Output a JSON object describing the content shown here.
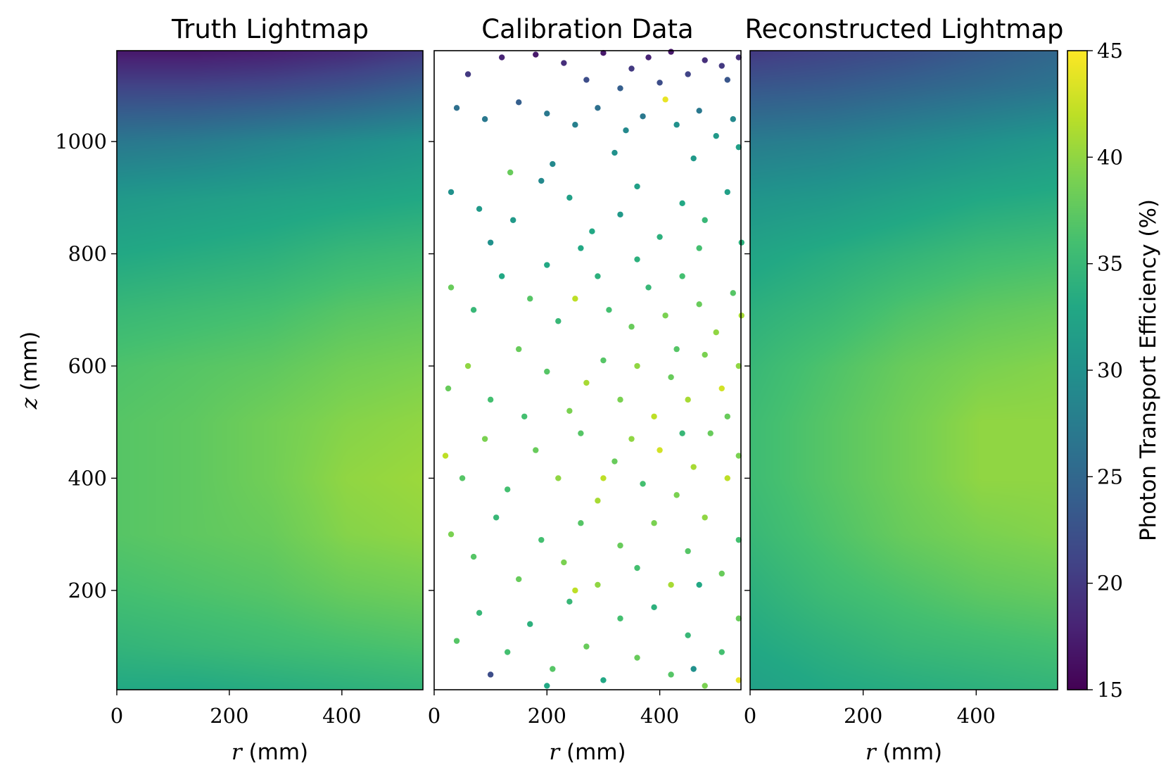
{
  "chart_data": [
    {
      "type": "heatmap",
      "title": "Truth Lightmap",
      "xlabel_var": "r",
      "xlabel_unit": "(mm)",
      "ylabel_var": "z",
      "ylabel_unit": "(mm)",
      "xlim": [
        0,
        544
      ],
      "ylim": [
        23,
        1162
      ],
      "xticks": [
        0,
        200,
        400
      ],
      "yticks": [
        200,
        400,
        600,
        800,
        1000
      ],
      "clim": [
        15,
        45
      ],
      "grid_r": [
        0,
        136,
        272,
        408,
        544
      ],
      "grid_z": [
        1162,
        1100,
        1000,
        900,
        800,
        700,
        600,
        500,
        400,
        300,
        200,
        100,
        23
      ],
      "values": [
        [
          17,
          17,
          17.5,
          18.5,
          20
        ],
        [
          21,
          21,
          21.5,
          22.5,
          24
        ],
        [
          27,
          27.5,
          28.5,
          29.5,
          30.5
        ],
        [
          31,
          31.5,
          32,
          32.5,
          33
        ],
        [
          33,
          33.5,
          34,
          35,
          35.5
        ],
        [
          35,
          35.5,
          36,
          37,
          37.5
        ],
        [
          36.5,
          37,
          37.5,
          38.5,
          39
        ],
        [
          37,
          37.5,
          38.5,
          39.5,
          40
        ],
        [
          37,
          37.5,
          38.5,
          40,
          40.5
        ],
        [
          37,
          37.5,
          38,
          39.5,
          40
        ],
        [
          36,
          36.5,
          37,
          38,
          38.5
        ],
        [
          34.5,
          35,
          35.5,
          36,
          36.5
        ],
        [
          33,
          33,
          33.5,
          34,
          34.5
        ]
      ]
    },
    {
      "type": "scatter",
      "title": "Calibration Data",
      "xlabel_var": "r",
      "xlabel_unit": "(mm)",
      "xlim": [
        0,
        544
      ],
      "ylim": [
        23,
        1162
      ],
      "xticks": [
        0,
        200,
        400
      ],
      "yticks": [
        200,
        400,
        600,
        800,
        1000
      ],
      "clim": [
        15,
        45
      ],
      "point_fields": [
        "r",
        "z",
        "efficiency"
      ],
      "points": [
        [
          120,
          1150,
          18
        ],
        [
          180,
          1155,
          17
        ],
        [
          230,
          1140,
          19
        ],
        [
          300,
          1158,
          17
        ],
        [
          350,
          1130,
          20
        ],
        [
          380,
          1150,
          18
        ],
        [
          420,
          1160,
          17
        ],
        [
          450,
          1120,
          21
        ],
        [
          480,
          1145,
          19
        ],
        [
          510,
          1135,
          20
        ],
        [
          540,
          1150,
          19
        ],
        [
          60,
          1120,
          20
        ],
        [
          270,
          1110,
          22
        ],
        [
          400,
          1105,
          22
        ],
        [
          520,
          1110,
          23
        ],
        [
          330,
          1095,
          24
        ],
        [
          410,
          1075,
          44
        ],
        [
          40,
          1060,
          26
        ],
        [
          90,
          1040,
          27
        ],
        [
          150,
          1070,
          24
        ],
        [
          200,
          1050,
          27
        ],
        [
          250,
          1030,
          28
        ],
        [
          290,
          1060,
          26
        ],
        [
          340,
          1020,
          29
        ],
        [
          370,
          1045,
          27
        ],
        [
          430,
          1030,
          30
        ],
        [
          470,
          1055,
          27
        ],
        [
          500,
          1010,
          31
        ],
        [
          530,
          1040,
          29
        ],
        [
          320,
          980,
          30
        ],
        [
          460,
          970,
          31
        ],
        [
          210,
          960,
          29
        ],
        [
          540,
          990,
          32
        ],
        [
          135,
          945,
          38
        ],
        [
          30,
          910,
          30
        ],
        [
          80,
          880,
          31
        ],
        [
          140,
          860,
          31
        ],
        [
          190,
          930,
          29
        ],
        [
          240,
          900,
          32
        ],
        [
          280,
          840,
          33
        ],
        [
          330,
          870,
          31
        ],
        [
          360,
          920,
          32
        ],
        [
          400,
          830,
          34
        ],
        [
          440,
          890,
          33
        ],
        [
          480,
          860,
          35
        ],
        [
          520,
          910,
          32
        ],
        [
          545,
          820,
          34
        ],
        [
          260,
          810,
          33
        ],
        [
          470,
          810,
          36
        ],
        [
          100,
          820,
          30
        ],
        [
          30,
          740,
          38
        ],
        [
          70,
          700,
          35
        ],
        [
          120,
          760,
          33
        ],
        [
          170,
          720,
          37
        ],
        [
          220,
          680,
          35
        ],
        [
          250,
          720,
          42
        ],
        [
          290,
          760,
          34
        ],
        [
          310,
          700,
          36
        ],
        [
          350,
          670,
          38
        ],
        [
          380,
          740,
          35
        ],
        [
          410,
          690,
          39
        ],
        [
          440,
          760,
          36
        ],
        [
          470,
          710,
          38
        ],
        [
          500,
          660,
          40
        ],
        [
          530,
          730,
          37
        ],
        [
          545,
          690,
          41
        ],
        [
          200,
          780,
          33
        ],
        [
          360,
          790,
          34
        ],
        [
          25,
          560,
          38
        ],
        [
          60,
          600,
          40
        ],
        [
          100,
          540,
          36
        ],
        [
          150,
          630,
          38
        ],
        [
          200,
          590,
          37
        ],
        [
          240,
          520,
          39
        ],
        [
          270,
          570,
          41
        ],
        [
          300,
          610,
          37
        ],
        [
          330,
          540,
          39
        ],
        [
          360,
          600,
          40
        ],
        [
          390,
          510,
          42
        ],
        [
          420,
          580,
          38
        ],
        [
          450,
          540,
          41
        ],
        [
          480,
          620,
          39
        ],
        [
          510,
          560,
          43
        ],
        [
          540,
          600,
          40
        ],
        [
          160,
          510,
          36
        ],
        [
          430,
          630,
          37
        ],
        [
          520,
          510,
          38
        ],
        [
          20,
          440,
          42
        ],
        [
          50,
          400,
          37
        ],
        [
          90,
          470,
          39
        ],
        [
          130,
          380,
          36
        ],
        [
          180,
          450,
          38
        ],
        [
          220,
          400,
          40
        ],
        [
          260,
          480,
          37
        ],
        [
          290,
          360,
          41
        ],
        [
          320,
          430,
          38
        ],
        [
          350,
          470,
          40
        ],
        [
          370,
          390,
          36
        ],
        [
          400,
          450,
          43
        ],
        [
          430,
          370,
          39
        ],
        [
          460,
          420,
          41
        ],
        [
          490,
          480,
          38
        ],
        [
          520,
          400,
          42
        ],
        [
          540,
          440,
          39
        ],
        [
          440,
          480,
          35
        ],
        [
          300,
          400,
          42
        ],
        [
          30,
          300,
          39
        ],
        [
          70,
          260,
          37
        ],
        [
          110,
          330,
          35
        ],
        [
          150,
          220,
          38
        ],
        [
          190,
          290,
          36
        ],
        [
          230,
          250,
          39
        ],
        [
          260,
          320,
          37
        ],
        [
          290,
          210,
          40
        ],
        [
          330,
          280,
          38
        ],
        [
          360,
          240,
          36
        ],
        [
          390,
          320,
          39
        ],
        [
          420,
          210,
          41
        ],
        [
          450,
          270,
          37
        ],
        [
          480,
          330,
          40
        ],
        [
          510,
          230,
          38
        ],
        [
          540,
          290,
          36
        ],
        [
          250,
          200,
          42
        ],
        [
          470,
          210,
          33
        ],
        [
          40,
          110,
          37
        ],
        [
          80,
          160,
          35
        ],
        [
          100,
          50,
          22
        ],
        [
          130,
          90,
          36
        ],
        [
          170,
          140,
          34
        ],
        [
          210,
          60,
          37
        ],
        [
          240,
          180,
          35
        ],
        [
          270,
          100,
          38
        ],
        [
          300,
          40,
          33
        ],
        [
          330,
          150,
          36
        ],
        [
          360,
          80,
          38
        ],
        [
          390,
          170,
          34
        ],
        [
          420,
          50,
          37
        ],
        [
          450,
          120,
          35
        ],
        [
          480,
          30,
          39
        ],
        [
          510,
          90,
          36
        ],
        [
          540,
          150,
          38
        ],
        [
          540,
          40,
          44
        ],
        [
          200,
          30,
          33
        ],
        [
          460,
          60,
          30
        ]
      ]
    },
    {
      "type": "heatmap",
      "title": "Reconstructed Lightmap",
      "xlabel_var": "r",
      "xlabel_unit": "(mm)",
      "xlim": [
        0,
        544
      ],
      "ylim": [
        23,
        1162
      ],
      "xticks": [
        0,
        200,
        400
      ],
      "yticks": [
        200,
        400,
        600,
        800,
        1000
      ],
      "clim": [
        15,
        45
      ],
      "grid_r": [
        0,
        136,
        272,
        408,
        544
      ],
      "grid_z": [
        1162,
        1100,
        1000,
        900,
        800,
        700,
        600,
        500,
        400,
        300,
        200,
        100,
        23
      ],
      "values": [
        [
          20,
          21,
          22,
          23.5,
          25
        ],
        [
          23,
          23.5,
          24.5,
          25.5,
          26.5
        ],
        [
          27.5,
          28,
          29,
          30,
          31
        ],
        [
          30.5,
          31,
          32,
          33,
          33.5
        ],
        [
          32.5,
          33.5,
          34.5,
          35.5,
          36
        ],
        [
          34,
          35,
          36.5,
          37.5,
          38
        ],
        [
          35,
          36.5,
          38,
          39,
          39.5
        ],
        [
          35.5,
          37,
          38.5,
          40,
          40
        ],
        [
          35.5,
          37,
          38.5,
          40,
          40
        ],
        [
          35,
          36.5,
          38,
          39,
          39.5
        ],
        [
          34,
          35.5,
          36.5,
          37.5,
          38
        ],
        [
          33,
          34,
          35,
          35.5,
          36
        ],
        [
          32,
          33,
          33.5,
          34,
          34.5
        ]
      ]
    }
  ],
  "colorbar": {
    "label": "Photon Transport Efficiency (%)",
    "range": [
      15,
      45
    ],
    "ticks": [
      15,
      20,
      25,
      30,
      35,
      40,
      45
    ],
    "colormap": "viridis"
  }
}
